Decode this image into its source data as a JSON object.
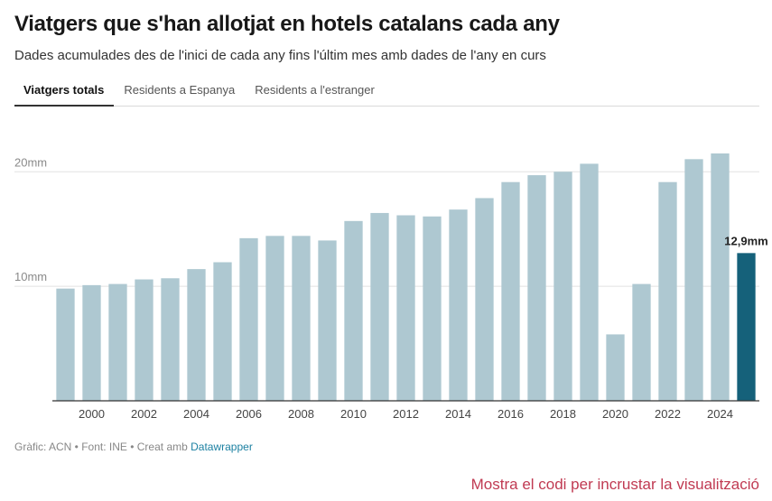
{
  "header": {
    "title": "Viatgers que s'han allotjat en hotels catalans cada any",
    "subtitle": "Dades acumulades des de l'inici de cada any fins l'últim mes amb dades de l'any en curs"
  },
  "tabs": [
    {
      "label": "Viatgers totals",
      "active": true
    },
    {
      "label": "Residents a Espanya",
      "active": false
    },
    {
      "label": "Residents a l'estranger",
      "active": false
    }
  ],
  "chart_data": {
    "type": "bar",
    "categories": [
      "1999",
      "2000",
      "2001",
      "2002",
      "2003",
      "2004",
      "2005",
      "2006",
      "2007",
      "2008",
      "2009",
      "2010",
      "2011",
      "2012",
      "2013",
      "2014",
      "2015",
      "2016",
      "2017",
      "2018",
      "2019",
      "2020",
      "2021",
      "2022",
      "2023",
      "2024",
      "2025"
    ],
    "x_tick_labels": [
      "2000",
      "2002",
      "2004",
      "2006",
      "2008",
      "2010",
      "2012",
      "2014",
      "2016",
      "2018",
      "2020",
      "2022",
      "2024"
    ],
    "values": [
      9.8,
      10.1,
      10.2,
      10.6,
      10.7,
      11.5,
      12.1,
      14.2,
      14.4,
      14.4,
      14.0,
      15.7,
      16.4,
      16.2,
      16.1,
      16.7,
      17.7,
      19.1,
      19.7,
      20.0,
      20.7,
      5.8,
      10.2,
      19.1,
      21.1,
      21.6,
      12.9
    ],
    "y_ticks": [
      {
        "value": 10,
        "label": "10mm"
      },
      {
        "value": 20,
        "label": "20mm"
      }
    ],
    "ylim": [
      0,
      24.2
    ],
    "highlight_index": 26,
    "highlight_label": "12,9mm",
    "colors": {
      "bar": "#aec8d1",
      "highlight": "#15617a",
      "grid": "#e2e2e2",
      "axis": "#333333"
    },
    "grid": true
  },
  "footer": {
    "prefix": "Gràfic: ACN • Font: INE • Creat amb ",
    "link": "Datawrapper"
  },
  "embed_link": "Mostra el codi per incrustar la visualització"
}
